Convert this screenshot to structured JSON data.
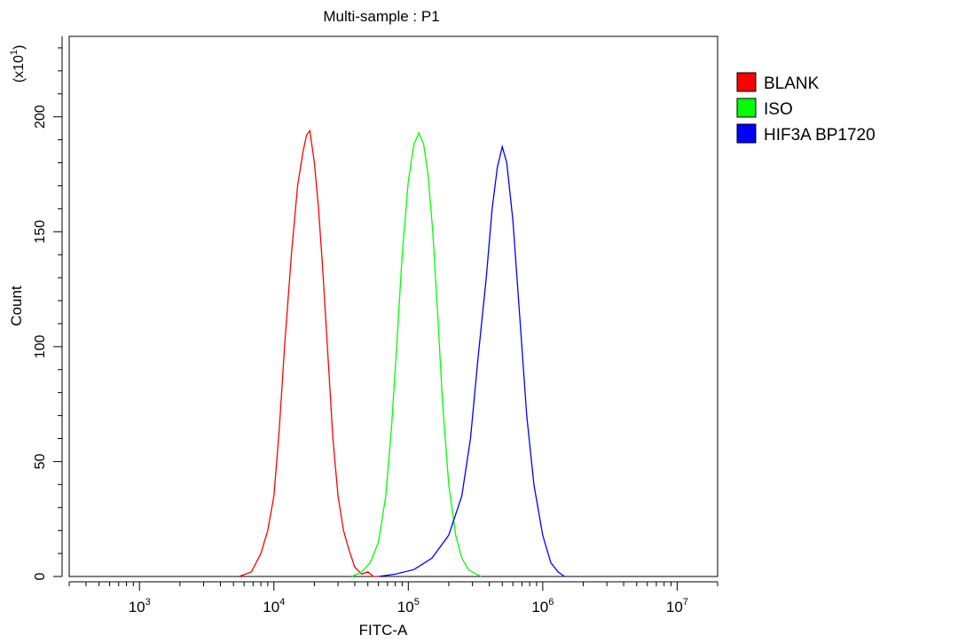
{
  "chart_data": {
    "type": "line",
    "title": "Multi-sample : P1",
    "xlabel": "FITC-A",
    "ylabel": "Count",
    "y_multiplier": {
      "base": "(x10",
      "exp": "1",
      "close": ")"
    },
    "x_scale": "log",
    "xlim": [
      300,
      20000000
    ],
    "ylim": [
      0,
      235
    ],
    "x_ticks": [
      {
        "value": 1000,
        "base": "10",
        "exp": "3"
      },
      {
        "value": 10000,
        "base": "10",
        "exp": "4"
      },
      {
        "value": 100000,
        "base": "10",
        "exp": "5"
      },
      {
        "value": 1000000,
        "base": "10",
        "exp": "6"
      },
      {
        "value": 10000000,
        "base": "10",
        "exp": "7"
      }
    ],
    "y_ticks": [
      0,
      50,
      100,
      150,
      200
    ],
    "grid": false,
    "legend_position": "right",
    "series": [
      {
        "name": "BLANK",
        "color": "#ff0000",
        "x": [
          5500,
          6800,
          8000,
          9000,
          10000,
          11000,
          12000,
          13500,
          15000,
          16500,
          17500,
          18500,
          20000,
          21500,
          23000,
          25000,
          27500,
          30000,
          33000,
          36000,
          40000,
          45000,
          50000,
          55000,
          60000
        ],
        "y": [
          0,
          2,
          10,
          20,
          35,
          65,
          100,
          140,
          170,
          185,
          192,
          194,
          180,
          160,
          135,
          100,
          60,
          35,
          20,
          12,
          4,
          1,
          2,
          0,
          0
        ]
      },
      {
        "name": "ISO",
        "color": "#00ff00",
        "x": [
          38000,
          45000,
          52000,
          60000,
          68000,
          75000,
          82000,
          90000,
          100000,
          110000,
          120000,
          130000,
          140000,
          152000,
          165000,
          180000,
          200000,
          225000,
          250000,
          280000,
          320000,
          350000
        ],
        "y": [
          0,
          2,
          6,
          15,
          35,
          65,
          100,
          140,
          172,
          188,
          193,
          188,
          175,
          150,
          115,
          75,
          40,
          18,
          8,
          3,
          1,
          0
        ]
      },
      {
        "name": "HIF3A BP1720",
        "color": "#0000ff",
        "x": [
          60000,
          80000,
          110000,
          150000,
          200000,
          250000,
          290000,
          330000,
          380000,
          420000,
          460000,
          500000,
          540000,
          600000,
          680000,
          760000,
          860000,
          1000000,
          1150000,
          1300000,
          1450000
        ],
        "y": [
          0,
          1,
          3,
          8,
          18,
          35,
          60,
          95,
          130,
          160,
          178,
          187,
          180,
          155,
          110,
          70,
          40,
          18,
          6,
          2,
          0
        ]
      }
    ]
  }
}
